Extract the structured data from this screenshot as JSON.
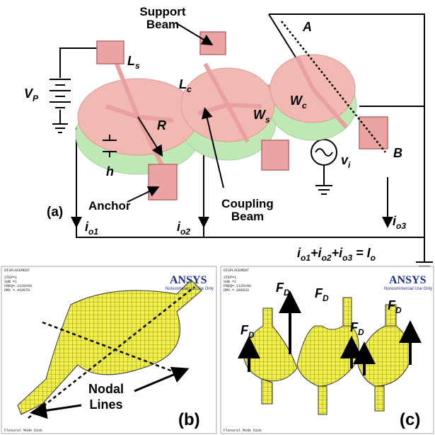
{
  "panel_a": {
    "label": "(a)",
    "support_beam": [
      "Support",
      "Beam"
    ],
    "anchor": "Anchor",
    "coupling_beam": [
      "Coupling",
      "Beam"
    ],
    "point_a": "A",
    "point_b": "B",
    "symbols": {
      "ls": {
        "base": "L",
        "sub": "s"
      },
      "vp": {
        "base": "V",
        "sub": "P"
      },
      "lc": {
        "base": "L",
        "sub": "c"
      },
      "wc": {
        "base": "W",
        "sub": "c"
      },
      "r": {
        "base": "R"
      },
      "ws": {
        "base": "W",
        "sub": "s"
      },
      "h": {
        "base": "h"
      },
      "vi": {
        "base": "v",
        "sub": "i"
      }
    },
    "currents": [
      {
        "base": "i",
        "sub": "o1"
      },
      {
        "base": "i",
        "sub": "o2"
      },
      {
        "base": "i",
        "sub": "o3"
      }
    ],
    "equation": [
      {
        "base": "i",
        "sub": "o1"
      },
      {
        "base": "+"
      },
      {
        "base": "i",
        "sub": "o2"
      },
      {
        "base": "+"
      },
      {
        "base": "i",
        "sub": "o3"
      },
      {
        "base": " = "
      },
      {
        "base": "I",
        "sub": "o"
      }
    ]
  },
  "panel_b": {
    "label": "(b)",
    "nodal_lines": [
      "Nodal",
      "Lines"
    ],
    "header": [
      "DISPLACEMENT",
      "STEP=1",
      "SUB =1",
      "FREQ=.1128+08",
      "DMX =.410870"
    ],
    "logo": "ANSYS",
    "note": "Noncommercial Use Only",
    "footer": "Flexural Mode Disk"
  },
  "panel_c": {
    "label": "(c)",
    "force_labels": [
      {
        "base": "F",
        "sub": "D"
      },
      {
        "base": "F",
        "sub": "D"
      },
      {
        "base": "F",
        "sub": "D"
      },
      {
        "base": "F",
        "sub": "D"
      },
      {
        "base": "F",
        "sub": "D"
      }
    ],
    "header": [
      "DISPLACEMENT",
      "STEP=1",
      "SUB =1",
      "FREQ=.1128+08",
      "DMX =.369833"
    ],
    "logo": "ANSYS",
    "note": "Noncommercial Use Only",
    "footer": "Flexural Mode Disk"
  }
}
